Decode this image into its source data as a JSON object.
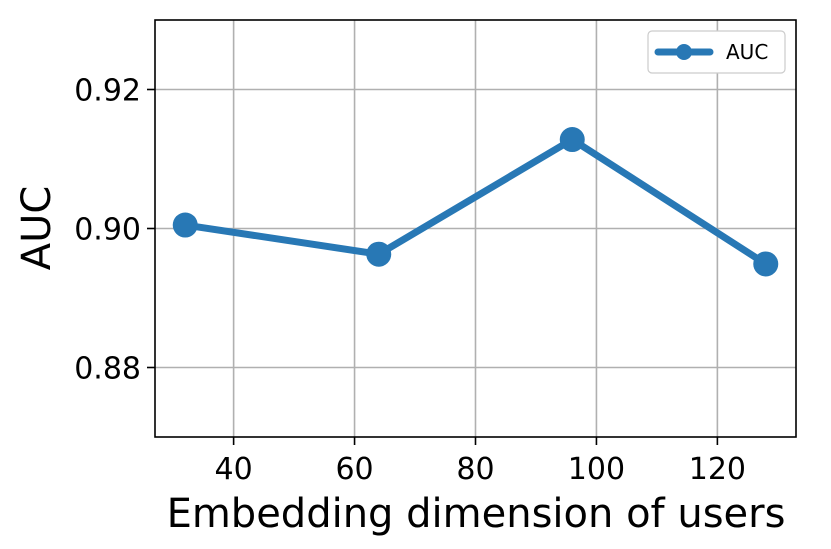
{
  "chart_data": {
    "type": "line",
    "title": "",
    "xlabel": "Embedding dimension of users",
    "ylabel": "AUC",
    "xlim": [
      27,
      133
    ],
    "ylim": [
      0.87,
      0.93
    ],
    "xticks": [
      40,
      60,
      80,
      100,
      120
    ],
    "yticks": [
      0.88,
      0.9,
      0.92
    ],
    "xtick_labels": [
      "40",
      "60",
      "80",
      "100",
      "120"
    ],
    "ytick_labels": [
      "0.88",
      "0.90",
      "0.92"
    ],
    "grid": true,
    "legend_position": "top-right",
    "series": [
      {
        "name": "AUC",
        "color": "#2878b5",
        "marker": "circle",
        "x": [
          32,
          64,
          96,
          128
        ],
        "y": [
          0.9005,
          0.8963,
          0.9128,
          0.8949
        ]
      }
    ]
  }
}
